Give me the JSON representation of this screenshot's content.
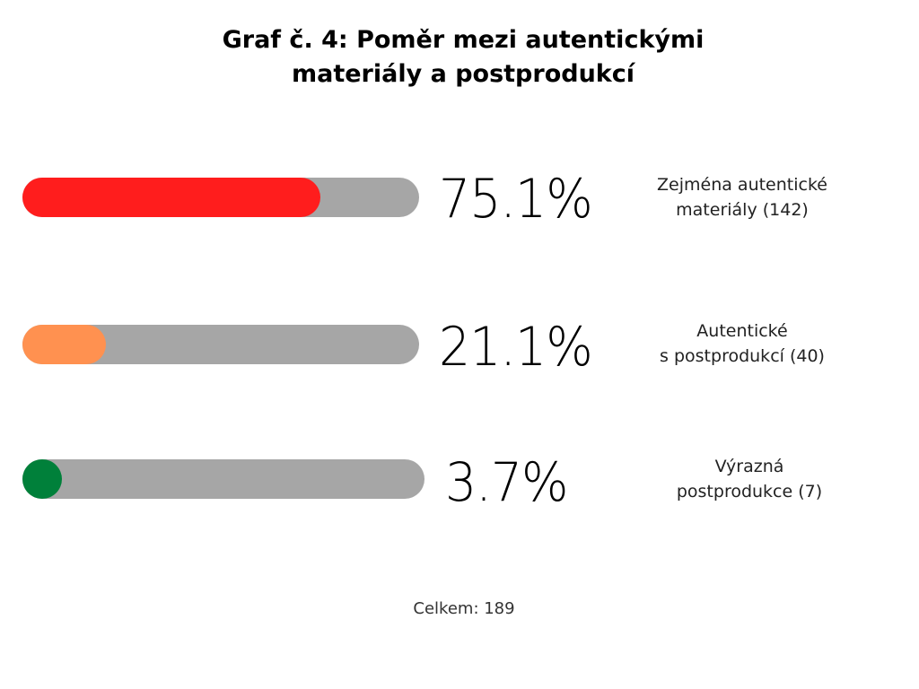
{
  "chart_data": {
    "type": "bar",
    "title": "Graf č. 4: Poměr mezi autentickými\nmateriály a postprodukcí",
    "max": 100,
    "series": [
      {
        "percent_label": "75.1%",
        "value": 75.1,
        "name": "Zejména autentické\n materiály (142)",
        "color": "#ff1d1d"
      },
      {
        "percent_label": "21.1%",
        "value": 21.1,
        "name": "Autentické\n s postprodukcí (40)",
        "color": "#ff9150"
      },
      {
        "percent_label": "3.7%",
        "value": 3.7,
        "name": "Výrazná\n postprodukce (7)",
        "color": "#00803a"
      }
    ],
    "track_color": "#a6a6a6",
    "total_label": "Celkem: 189"
  }
}
